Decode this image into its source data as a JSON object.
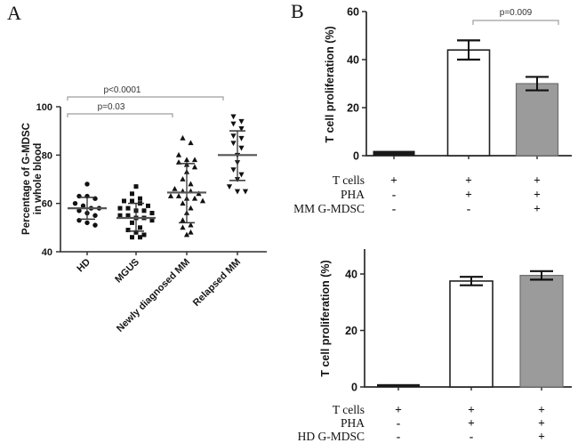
{
  "panels": {
    "a_label": "A",
    "b_label": "B"
  },
  "colors": {
    "black_bar": "#1a1a1a",
    "white_bar": "#ffffff",
    "gray_bar": "#9b9b9b",
    "axis": "#2b2b2b",
    "bracket": "#9e9e9e",
    "error_bar": "#111111",
    "mean_line": "#555555",
    "marker": "#111111"
  },
  "chart_data": [
    {
      "panel": "A",
      "type": "scatter",
      "ylabel_lines": [
        "Percentage of G-MDSC",
        "in whole blood"
      ],
      "ylim": [
        40,
        100
      ],
      "yticks": [
        40,
        60,
        80,
        100
      ],
      "legend": "none",
      "grid": false,
      "groups": [
        {
          "label": "HD",
          "marker": "circle",
          "mean": 58,
          "sd_low": 53.5,
          "sd_high": 62.5,
          "values": [
            68,
            63,
            63,
            62,
            60,
            59,
            58,
            58,
            57,
            56,
            55,
            53,
            52,
            51
          ]
        },
        {
          "label": "MGUS",
          "marker": "square",
          "mean": 54,
          "sd_low": 48.5,
          "sd_high": 60,
          "values": [
            67,
            64,
            62,
            61,
            61,
            60,
            59,
            58,
            58,
            57,
            57,
            56,
            55,
            55,
            54,
            54,
            53,
            52,
            50,
            49,
            48,
            47,
            46,
            46
          ]
        },
        {
          "label": "Newly diagnosed MM",
          "marker": "triangle-up",
          "mean": 64.5,
          "sd_low": 52,
          "sd_high": 76.5,
          "values": [
            87,
            85,
            80,
            78,
            78,
            77,
            76,
            75,
            73,
            70,
            68,
            66,
            65,
            65,
            64,
            63,
            63,
            62,
            62,
            61,
            60,
            58,
            56,
            53,
            51,
            50,
            48,
            47
          ]
        },
        {
          "label": "Relapsed MM",
          "marker": "triangle-down",
          "mean": 80,
          "sd_low": 69.5,
          "sd_high": 90,
          "values": [
            96,
            94,
            93,
            91,
            88,
            87,
            85,
            83,
            80,
            77,
            74,
            72,
            70,
            67,
            65,
            65
          ]
        }
      ],
      "significance": [
        {
          "label": "p<0.0001",
          "from": "HD",
          "to": "Relapsed MM"
        },
        {
          "label": "p=0.03",
          "from": "HD",
          "to": "Newly diagnosed MM"
        }
      ]
    },
    {
      "panel": "B-top",
      "type": "bar",
      "ylabel": "T cell proliferation (%)",
      "ylim": [
        0,
        60
      ],
      "yticks": [
        0,
        20,
        40,
        60
      ],
      "grid": false,
      "bars": [
        {
          "value": 2,
          "error": 0,
          "fill": "black"
        },
        {
          "value": 44,
          "error": 4,
          "fill": "white"
        },
        {
          "value": 30,
          "error": 2.8,
          "fill": "gray"
        }
      ],
      "significance": [
        {
          "label": "p=0.009",
          "from": 1,
          "to": 2
        }
      ],
      "conditions": [
        {
          "label": "T cells",
          "values": [
            "+",
            "+",
            "+"
          ]
        },
        {
          "label": "PHA",
          "values": [
            "-",
            "+",
            "+"
          ]
        },
        {
          "label": "MM G-MDSC",
          "values": [
            "-",
            "-",
            "+"
          ]
        }
      ]
    },
    {
      "panel": "B-bottom",
      "type": "bar",
      "ylabel": "T cell proliferation (%)",
      "ylim": [
        0,
        50
      ],
      "yticks": [
        0,
        20,
        40
      ],
      "grid": false,
      "bars": [
        {
          "value": 1,
          "error": 0,
          "fill": "black"
        },
        {
          "value": 37.5,
          "error": 1.5,
          "fill": "white"
        },
        {
          "value": 39.5,
          "error": 1.5,
          "fill": "gray"
        }
      ],
      "significance": [],
      "conditions": [
        {
          "label": "T cells",
          "values": [
            "+",
            "+",
            "+"
          ]
        },
        {
          "label": "PHA",
          "values": [
            "-",
            "+",
            "+"
          ]
        },
        {
          "label": "HD G-MDSC",
          "values": [
            "-",
            "-",
            "+"
          ]
        }
      ]
    }
  ]
}
